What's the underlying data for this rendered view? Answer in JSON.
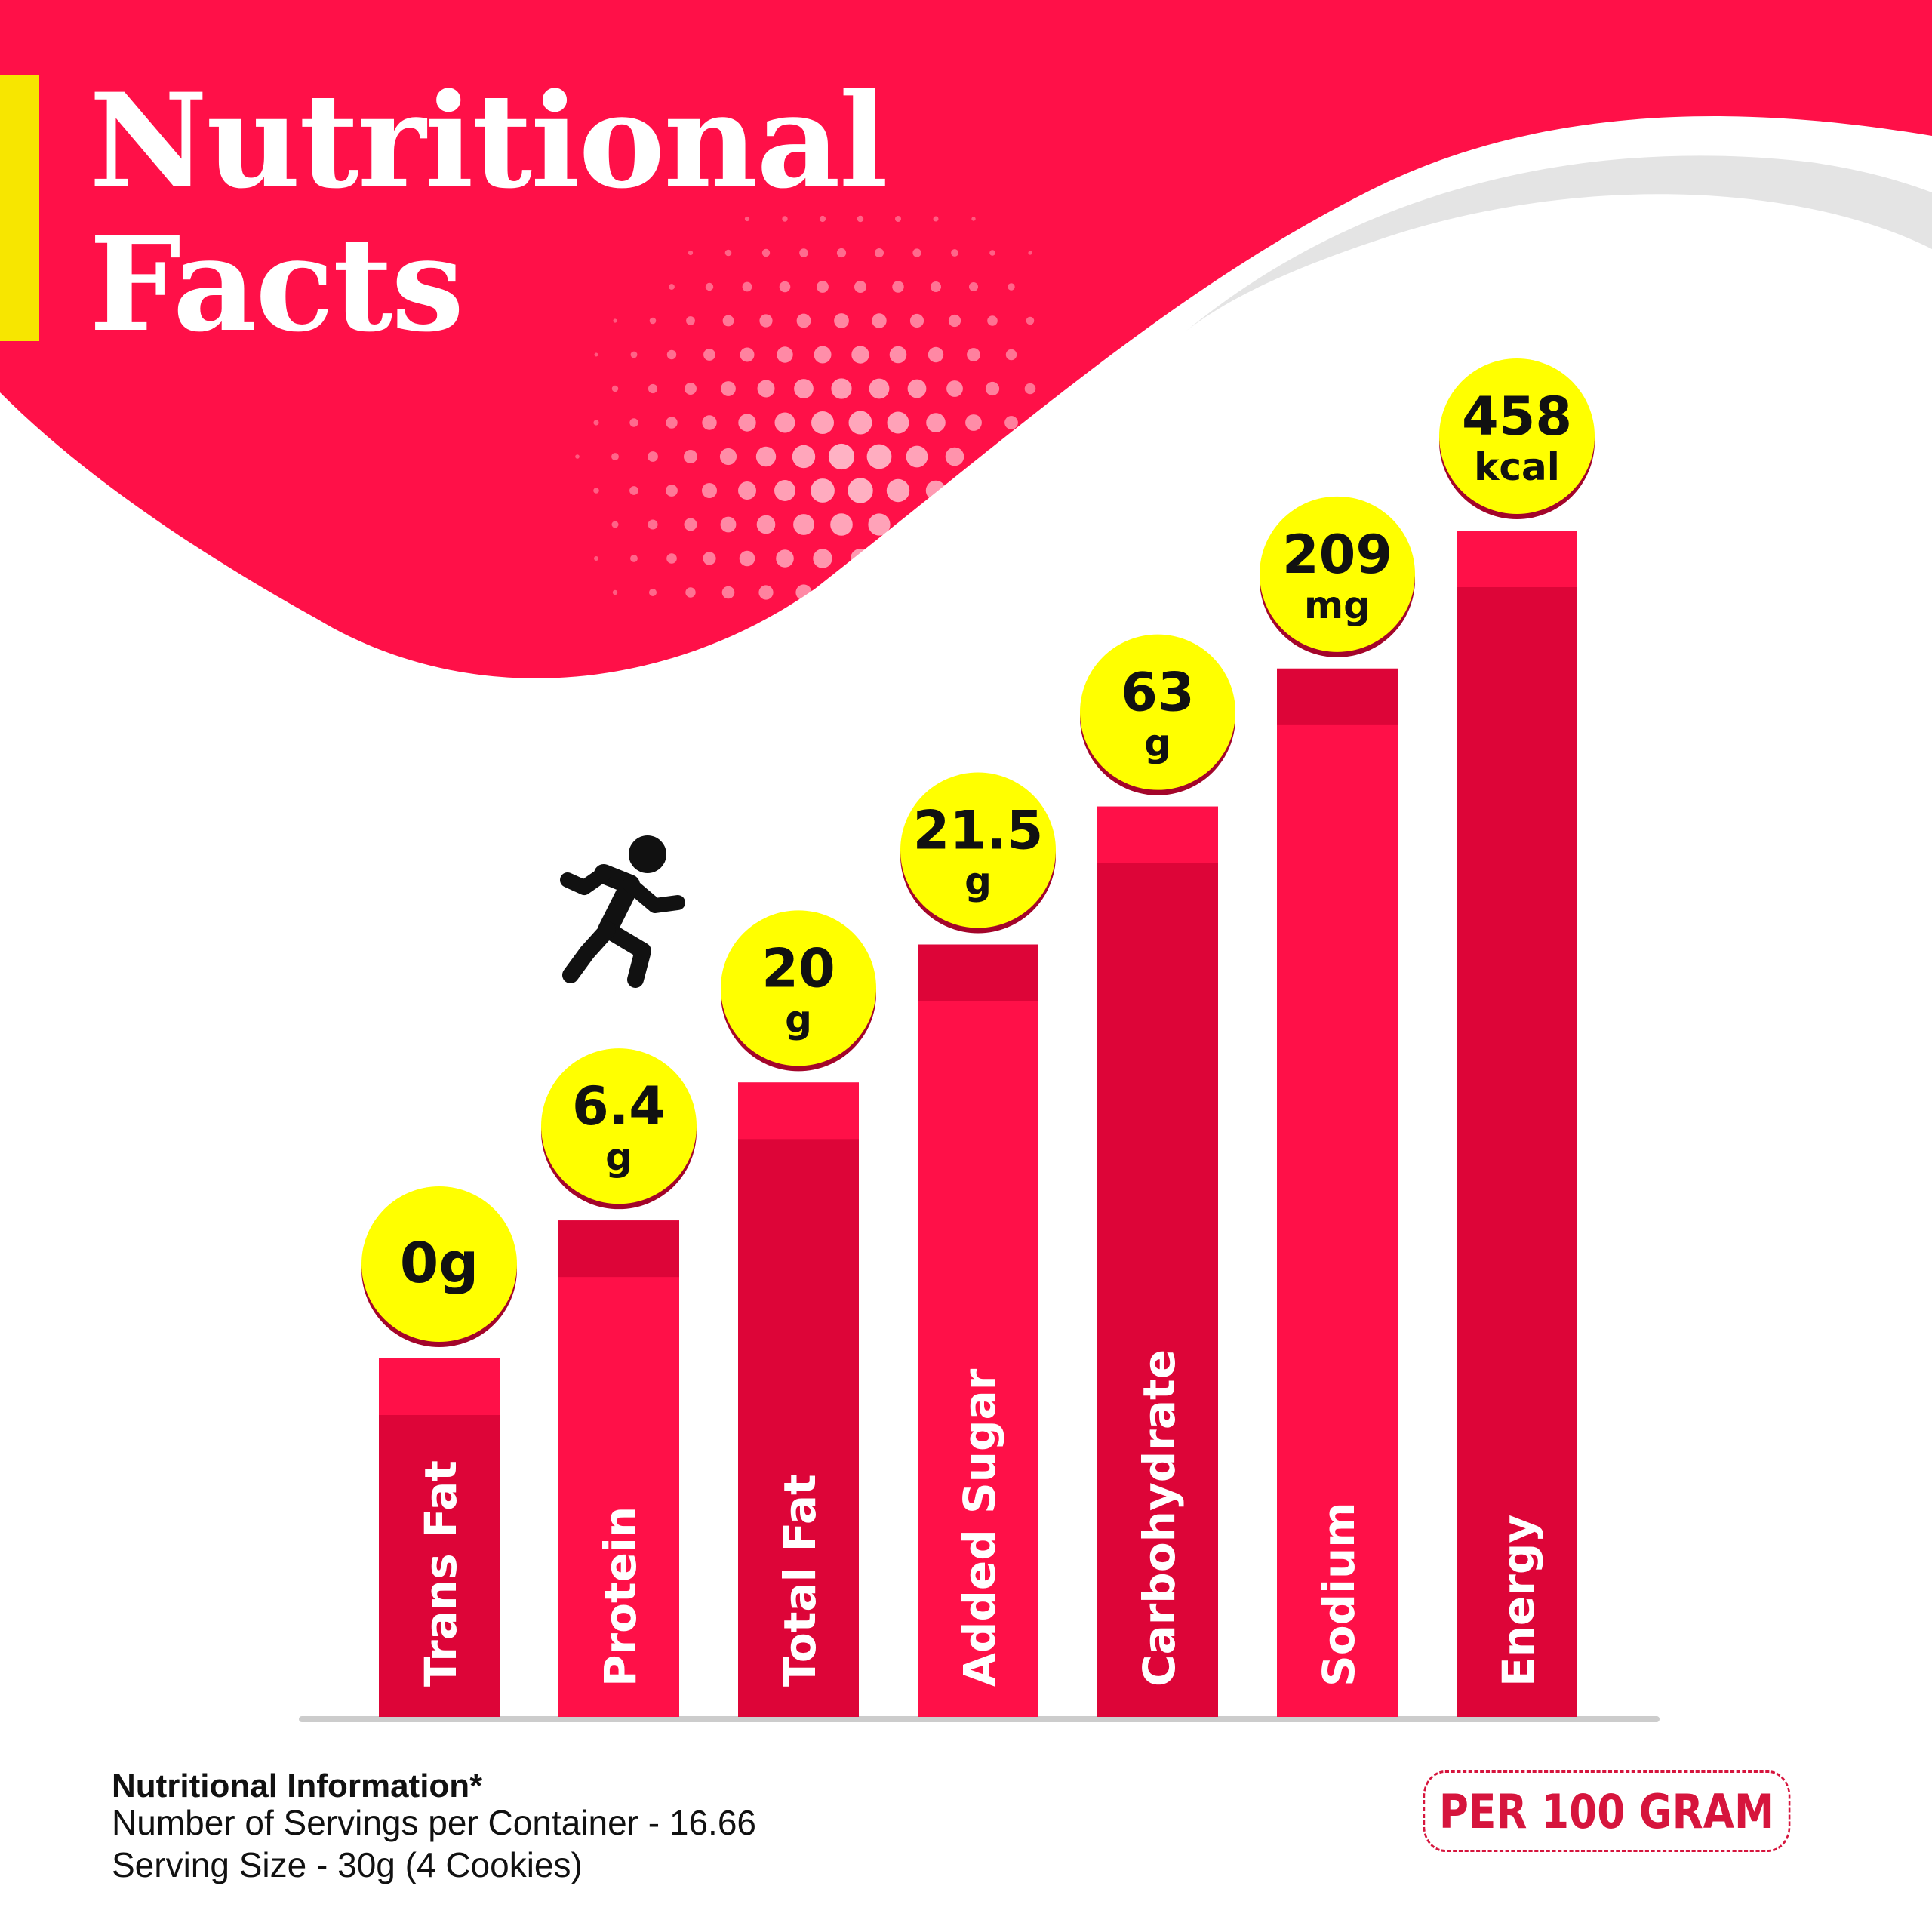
{
  "title": {
    "line1": "Nutritional",
    "line2": "Facts"
  },
  "colors": {
    "brand_red": "#ff1048",
    "bar_light": "#ff1048",
    "bar_dark": "#dd0538",
    "value_circle": "#ffff00",
    "accent_bar": "#f7e600",
    "swoosh_grey": "#e4e4e4"
  },
  "icons": [
    "running-person-icon"
  ],
  "chart_data": {
    "type": "bar",
    "title": "",
    "xlabel": "",
    "ylabel": "",
    "grid": false,
    "bars": [
      {
        "label": "Trans Fat",
        "value_line1": "0g",
        "value_line2": "",
        "amount": 0,
        "unit": "g"
      },
      {
        "label": "Protein",
        "value_line1": "6.4",
        "value_line2": "g",
        "amount": 6.4,
        "unit": "g"
      },
      {
        "label": "Total Fat",
        "value_line1": "20",
        "value_line2": "g",
        "amount": 20,
        "unit": "g"
      },
      {
        "label": "Added Sugar",
        "value_line1": "21.5",
        "value_line2": "g",
        "amount": 21.5,
        "unit": "g"
      },
      {
        "label": "Carbohydrate",
        "value_line1": "63",
        "value_line2": "g",
        "amount": 63,
        "unit": "g"
      },
      {
        "label": "Sodium",
        "value_line1": "209",
        "value_line2": "mg",
        "amount": 209,
        "unit": "mg"
      },
      {
        "label": "Energy",
        "value_line1": "458",
        "value_line2": "kcal",
        "amount": 458,
        "unit": "kcal"
      }
    ]
  },
  "footer": {
    "heading": "Nutritional Information*",
    "servings": "Number of Servings per Container - 16.66",
    "serving_size": "Serving Size - 30g  (4 Cookies)"
  },
  "badge": {
    "label": "PER 100 GRAM"
  }
}
